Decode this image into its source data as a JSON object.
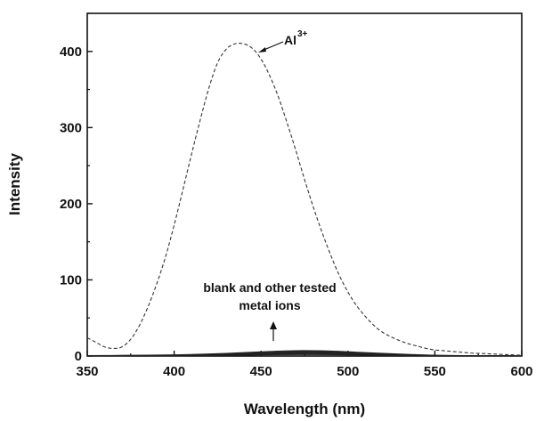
{
  "chart_data": {
    "type": "line",
    "title": "",
    "xlabel": "Wavelength (nm)",
    "ylabel": "Intensity",
    "xlim": [
      350,
      600
    ],
    "ylim": [
      0,
      450
    ],
    "x_ticks": [
      350,
      400,
      450,
      500,
      550,
      600
    ],
    "y_ticks": [
      0,
      100,
      200,
      300,
      400
    ],
    "grid": false,
    "series": [
      {
        "name": "Al3+",
        "style": "dashed",
        "x": [
          350,
          355,
          360,
          365,
          370,
          375,
          380,
          385,
          390,
          395,
          400,
          405,
          410,
          415,
          420,
          425,
          430,
          435,
          440,
          445,
          450,
          455,
          460,
          465,
          470,
          475,
          480,
          485,
          490,
          495,
          500,
          505,
          510,
          515,
          520,
          525,
          530,
          535,
          540,
          545,
          550,
          555,
          560,
          565,
          570,
          575,
          580,
          585,
          590,
          595,
          600
        ],
        "y": [
          24,
          18,
          12,
          10,
          12,
          22,
          40,
          65,
          95,
          130,
          172,
          218,
          265,
          310,
          352,
          385,
          403,
          410,
          410,
          404,
          390,
          368,
          340,
          306,
          270,
          232,
          196,
          163,
          133,
          106,
          84,
          66,
          52,
          40,
          31,
          25,
          20,
          16,
          13,
          10,
          8,
          7,
          6,
          5,
          4,
          3.5,
          3,
          2.5,
          2,
          1.5,
          1
        ]
      }
    ],
    "background_series": {
      "name": "blank and other tested metal ions",
      "count": 6,
      "x": [
        350,
        370,
        390,
        410,
        430,
        450,
        470,
        490,
        510,
        530,
        550,
        570,
        600
      ],
      "y_max": [
        0.5,
        0.8,
        1.2,
        2,
        3.5,
        5.5,
        7,
        6.5,
        4.5,
        2.5,
        1,
        0.5,
        0.2
      ],
      "y_min": [
        0,
        0,
        0,
        0.3,
        0.8,
        1.5,
        2,
        1.8,
        1.2,
        0.6,
        0.2,
        0.1,
        0
      ]
    },
    "annotations": {
      "peak_label": "Al",
      "peak_label_sup": "3+",
      "baseline_label_line1": "blank and other tested",
      "baseline_label_line2": "metal ions"
    },
    "colors": {
      "axis": "#111111",
      "al_curve": "#333333",
      "background_curves": "#222222"
    }
  }
}
